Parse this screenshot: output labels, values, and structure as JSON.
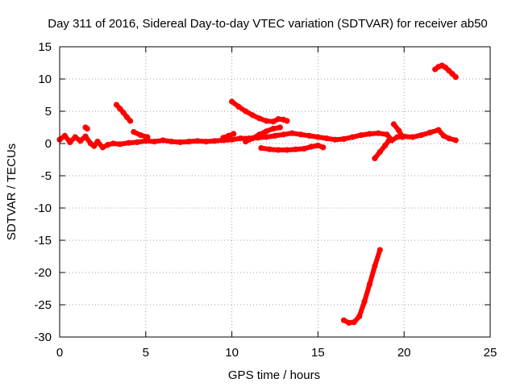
{
  "chart_data": {
    "type": "scatter",
    "title": "Day 311 of 2016, Sidereal Day-to-day VTEC variation (SDTVAR) for receiver ab50",
    "xlabel": "GPS time / hours",
    "ylabel": "SDTVAR / TECUs",
    "xlim": [
      0,
      25
    ],
    "ylim": [
      -30,
      15
    ],
    "x_ticks": [
      0,
      5,
      10,
      15,
      20,
      25
    ],
    "y_ticks": [
      -30,
      -25,
      -20,
      -15,
      -10,
      -5,
      0,
      5,
      10,
      15
    ],
    "x_tick_labels": [
      "0",
      "5",
      "10",
      "15",
      "20",
      "25"
    ],
    "y_tick_labels": [
      "-30",
      "-25",
      "-20",
      "-15",
      "-10",
      "-5",
      "0",
      "5",
      "10",
      "15"
    ],
    "grid": true,
    "marker_color": "#ff0000",
    "series": [
      {
        "points": [
          [
            0.0,
            0.6
          ],
          [
            0.3,
            1.2
          ],
          [
            0.6,
            0.2
          ],
          [
            0.9,
            1.0
          ],
          [
            1.2,
            0.4
          ],
          [
            1.5,
            1.1
          ],
          [
            1.8,
            0.0
          ],
          [
            2.0,
            -0.4
          ],
          [
            2.2,
            0.3
          ],
          [
            2.5,
            -0.6
          ],
          [
            2.8,
            -0.2
          ],
          [
            3.1,
            0.0
          ],
          [
            3.5,
            -0.1
          ],
          [
            4.0,
            0.1
          ],
          [
            4.5,
            0.2
          ],
          [
            5.0,
            0.4
          ],
          [
            5.5,
            0.3
          ],
          [
            6.0,
            0.5
          ],
          [
            6.5,
            0.3
          ],
          [
            7.0,
            0.2
          ],
          [
            7.5,
            0.3
          ],
          [
            8.0,
            0.4
          ],
          [
            8.5,
            0.3
          ],
          [
            9.0,
            0.4
          ],
          [
            9.5,
            0.5
          ],
          [
            10.0,
            0.6
          ],
          [
            10.5,
            0.8
          ],
          [
            11.0,
            0.8
          ],
          [
            11.5,
            0.9
          ],
          [
            12.0,
            1.0
          ],
          [
            12.5,
            1.2
          ],
          [
            13.0,
            1.4
          ],
          [
            13.5,
            1.6
          ],
          [
            14.0,
            1.4
          ],
          [
            14.5,
            1.2
          ],
          [
            15.0,
            1.0
          ],
          [
            15.5,
            0.8
          ],
          [
            16.0,
            0.6
          ],
          [
            16.5,
            0.7
          ],
          [
            17.0,
            1.0
          ],
          [
            17.5,
            1.3
          ],
          [
            18.0,
            1.5
          ],
          [
            18.5,
            1.6
          ],
          [
            19.0,
            1.4
          ],
          [
            19.3,
            0.5
          ],
          [
            19.6,
            1.0
          ],
          [
            20.0,
            1.1
          ],
          [
            20.5,
            1.0
          ],
          [
            21.0,
            1.3
          ],
          [
            21.5,
            1.7
          ],
          [
            22.0,
            2.1
          ],
          [
            22.3,
            1.2
          ],
          [
            22.6,
            0.8
          ],
          [
            23.0,
            0.5
          ]
        ]
      },
      {
        "points": [
          [
            3.3,
            6.0
          ],
          [
            3.5,
            5.4
          ],
          [
            3.7,
            4.8
          ],
          [
            3.9,
            4.1
          ],
          [
            4.1,
            3.5
          ]
        ]
      },
      {
        "points": [
          [
            10.0,
            6.5
          ],
          [
            10.4,
            5.7
          ],
          [
            10.8,
            5.0
          ],
          [
            11.2,
            4.4
          ],
          [
            11.6,
            3.9
          ],
          [
            12.0,
            3.5
          ],
          [
            12.4,
            3.4
          ],
          [
            12.7,
            3.8
          ],
          [
            13.0,
            3.7
          ],
          [
            13.2,
            3.5
          ]
        ]
      },
      {
        "points": [
          [
            10.8,
            0.3
          ],
          [
            11.2,
            0.8
          ],
          [
            11.6,
            1.4
          ],
          [
            12.0,
            1.9
          ],
          [
            12.4,
            2.3
          ],
          [
            12.8,
            2.5
          ]
        ]
      },
      {
        "points": [
          [
            11.7,
            -0.7
          ],
          [
            12.2,
            -0.9
          ],
          [
            12.7,
            -1.0
          ],
          [
            13.2,
            -1.0
          ],
          [
            13.7,
            -0.9
          ],
          [
            14.2,
            -0.8
          ],
          [
            14.6,
            -0.5
          ],
          [
            15.0,
            -0.3
          ],
          [
            15.3,
            -0.6
          ]
        ]
      },
      {
        "points": [
          [
            1.5,
            2.5
          ],
          [
            1.6,
            2.3
          ]
        ]
      },
      {
        "points": [
          [
            4.3,
            1.8
          ],
          [
            4.7,
            1.3
          ],
          [
            5.1,
            1.0
          ]
        ]
      },
      {
        "points": [
          [
            9.5,
            0.9
          ],
          [
            9.8,
            1.2
          ],
          [
            10.1,
            1.5
          ]
        ]
      },
      {
        "points": [
          [
            18.3,
            -2.3
          ],
          [
            18.6,
            -1.3
          ],
          [
            18.9,
            -0.3
          ],
          [
            19.1,
            0.4
          ]
        ]
      },
      {
        "points": [
          [
            19.4,
            3.0
          ],
          [
            19.7,
            2.0
          ],
          [
            19.9,
            1.0
          ]
        ]
      },
      {
        "points": [
          [
            16.5,
            -27.4
          ],
          [
            16.8,
            -27.8
          ],
          [
            17.1,
            -27.7
          ],
          [
            17.4,
            -26.8
          ],
          [
            17.7,
            -24.5
          ],
          [
            18.0,
            -21.8
          ],
          [
            18.3,
            -19.0
          ],
          [
            18.6,
            -16.5
          ]
        ]
      },
      {
        "points": [
          [
            21.8,
            11.5
          ],
          [
            22.0,
            11.9
          ],
          [
            22.2,
            12.1
          ],
          [
            22.4,
            11.8
          ],
          [
            22.6,
            11.3
          ],
          [
            22.8,
            10.8
          ],
          [
            23.0,
            10.3
          ]
        ]
      }
    ]
  }
}
